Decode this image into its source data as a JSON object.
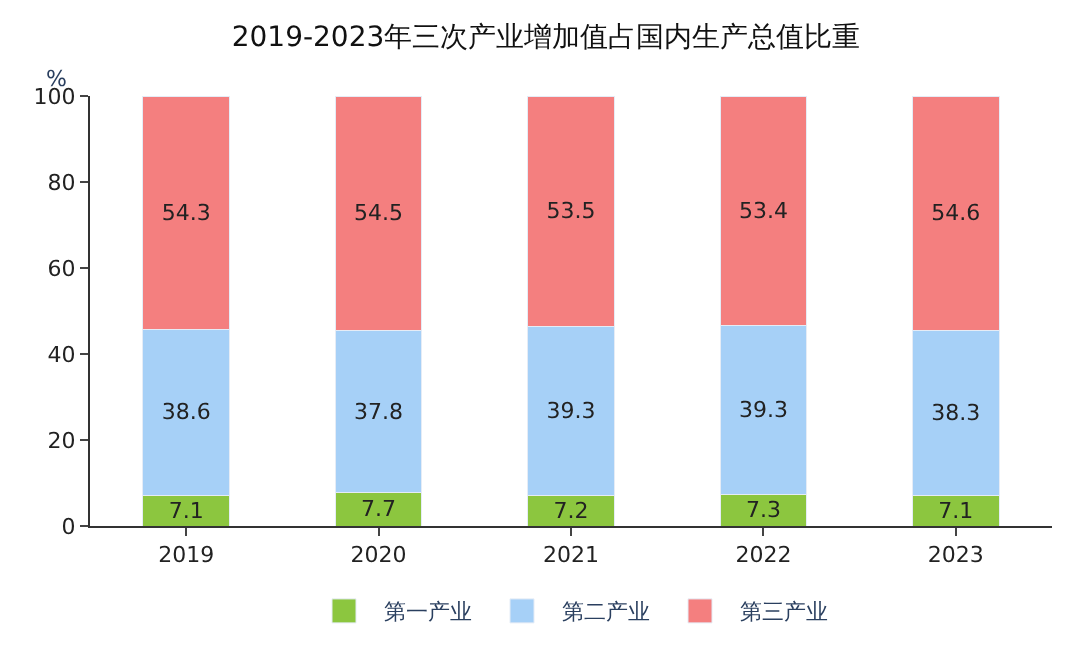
{
  "chart_data": {
    "type": "bar",
    "title": "2019-2023年三次产业增加值占国内生产总值比重",
    "ylabel": "%",
    "categories": [
      "2019",
      "2020",
      "2021",
      "2022",
      "2023"
    ],
    "stacked": true,
    "data_labels": true,
    "ylim": [
      0,
      100
    ],
    "yticks": [
      0,
      20,
      40,
      60,
      80,
      100
    ],
    "legend": "bottom",
    "series": [
      {
        "name": "第一产业",
        "color": "#8cc63f",
        "values": [
          7.1,
          7.7,
          7.2,
          7.3,
          7.1
        ]
      },
      {
        "name": "第二产业",
        "color": "#a6d0f7",
        "values": [
          38.6,
          37.8,
          39.3,
          39.3,
          38.3
        ]
      },
      {
        "name": "第三产业",
        "color": "#f47f7f",
        "values": [
          54.3,
          54.5,
          53.5,
          53.4,
          54.6
        ]
      }
    ]
  }
}
